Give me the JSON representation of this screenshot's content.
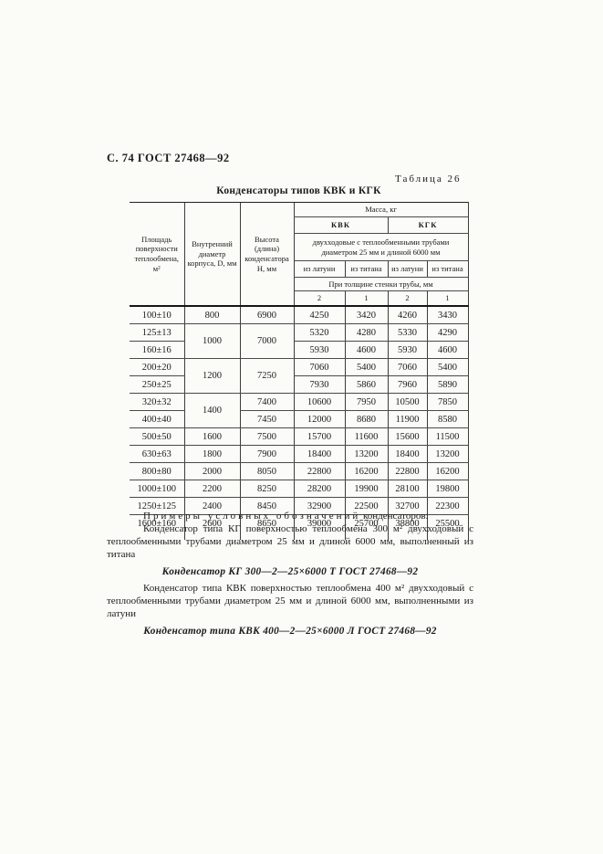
{
  "page": {
    "header": "С. 74 ГОСТ 27468—92",
    "table_label": "Таблица 26",
    "table_title": "Конденсаторы типов КВК и КГК"
  },
  "table": {
    "col_headers": {
      "area": "Площадь поверхности теплообмена, м²",
      "diameter": "Внутренний диаметр корпуса, D, мм",
      "height": "Высота (длина) конденсатора Н, мм",
      "mass": "Масса, кг",
      "kvk": "КВК",
      "kgk": "КГК",
      "two_pass": "двухходовые с теплообменными трубами диаметром 25 мм и длиной 6000 мм",
      "brass1": "из латуни",
      "titanium1": "из титана",
      "brass2": "из латуни",
      "titanium2": "из титана",
      "wall": "При толщине стенки трубы, мм",
      "t1": "2",
      "t2": "1",
      "t3": "2",
      "t4": "1"
    },
    "rows": [
      {
        "cells": [
          {
            "v": "100±10"
          },
          {
            "v": "800"
          },
          {
            "v": "6900"
          },
          {
            "v": "4250"
          },
          {
            "v": "3420"
          },
          {
            "v": "4260"
          },
          {
            "v": "3430"
          }
        ]
      },
      {
        "cells": [
          {
            "v": "125±13"
          },
          {
            "v": "1000",
            "rs": 2
          },
          {
            "v": "7000",
            "rs": 2
          },
          {
            "v": "5320"
          },
          {
            "v": "4280"
          },
          {
            "v": "5330"
          },
          {
            "v": "4290"
          }
        ]
      },
      {
        "cells": [
          {
            "v": "160±16"
          },
          {
            "v": "5930"
          },
          {
            "v": "4600"
          },
          {
            "v": "5930"
          },
          {
            "v": "4600"
          }
        ]
      },
      {
        "cells": [
          {
            "v": "200±20"
          },
          {
            "v": "1200",
            "rs": 2
          },
          {
            "v": "7250",
            "rs": 2
          },
          {
            "v": "7060"
          },
          {
            "v": "5400"
          },
          {
            "v": "7060"
          },
          {
            "v": "5400"
          }
        ]
      },
      {
        "cells": [
          {
            "v": "250±25"
          },
          {
            "v": "7930"
          },
          {
            "v": "5860"
          },
          {
            "v": "7960"
          },
          {
            "v": "5890"
          }
        ]
      },
      {
        "cells": [
          {
            "v": "320±32"
          },
          {
            "v": "1400",
            "rs": 2
          },
          {
            "v": "7400"
          },
          {
            "v": "10600"
          },
          {
            "v": "7950"
          },
          {
            "v": "10500"
          },
          {
            "v": "7850"
          }
        ]
      },
      {
        "cells": [
          {
            "v": "400±40"
          },
          {
            "v": "7450"
          },
          {
            "v": "12000"
          },
          {
            "v": "8680"
          },
          {
            "v": "11900"
          },
          {
            "v": "8580"
          }
        ]
      },
      {
        "cells": [
          {
            "v": "500±50"
          },
          {
            "v": "1600"
          },
          {
            "v": "7500"
          },
          {
            "v": "15700"
          },
          {
            "v": "11600"
          },
          {
            "v": "15600"
          },
          {
            "v": "11500"
          }
        ]
      },
      {
        "cells": [
          {
            "v": "630±63"
          },
          {
            "v": "1800"
          },
          {
            "v": "7900"
          },
          {
            "v": "18400"
          },
          {
            "v": "13200"
          },
          {
            "v": "18400"
          },
          {
            "v": "13200"
          }
        ]
      },
      {
        "cells": [
          {
            "v": "800±80"
          },
          {
            "v": "2000"
          },
          {
            "v": "8050"
          },
          {
            "v": "22800"
          },
          {
            "v": "16200"
          },
          {
            "v": "22800"
          },
          {
            "v": "16200"
          }
        ]
      },
      {
        "cells": [
          {
            "v": "1000±100"
          },
          {
            "v": "2200"
          },
          {
            "v": "8250"
          },
          {
            "v": "28200"
          },
          {
            "v": "19900"
          },
          {
            "v": "28100"
          },
          {
            "v": "19800"
          }
        ]
      },
      {
        "cells": [
          {
            "v": "1250±125"
          },
          {
            "v": "2400"
          },
          {
            "v": "8450"
          },
          {
            "v": "32900"
          },
          {
            "v": "22500"
          },
          {
            "v": "32700"
          },
          {
            "v": "22300"
          }
        ]
      },
      {
        "cells": [
          {
            "v": "1600±160"
          },
          {
            "v": "2600"
          },
          {
            "v": "8650"
          },
          {
            "v": "39000"
          },
          {
            "v": "25700"
          },
          {
            "v": "38800"
          },
          {
            "v": "25500"
          }
        ]
      }
    ]
  },
  "examples": {
    "heading_spaced": "Примеры условных обозначений",
    "heading_tail": "конденсаторов:",
    "para1": "Конденсатор типа КГ поверхностью теплообмена 300 м² двухходовый с теплообменными трубами диаметром 25 мм и длиной 6000 мм, выполненный из титана",
    "designation1": "Конденсатор КГ 300—2—25×6000 Т ГОСТ 27468—92",
    "para2": "Конденсатор типа КВК поверхностью теплообмена 400 м² двухходовый с теплообменными трубами диаметром 25 мм и длиной 6000 мм, выполненными из латуни",
    "designation2": "Конденсатор типа КВК 400—2—25×6000 Л ГОСТ 27468—92"
  }
}
